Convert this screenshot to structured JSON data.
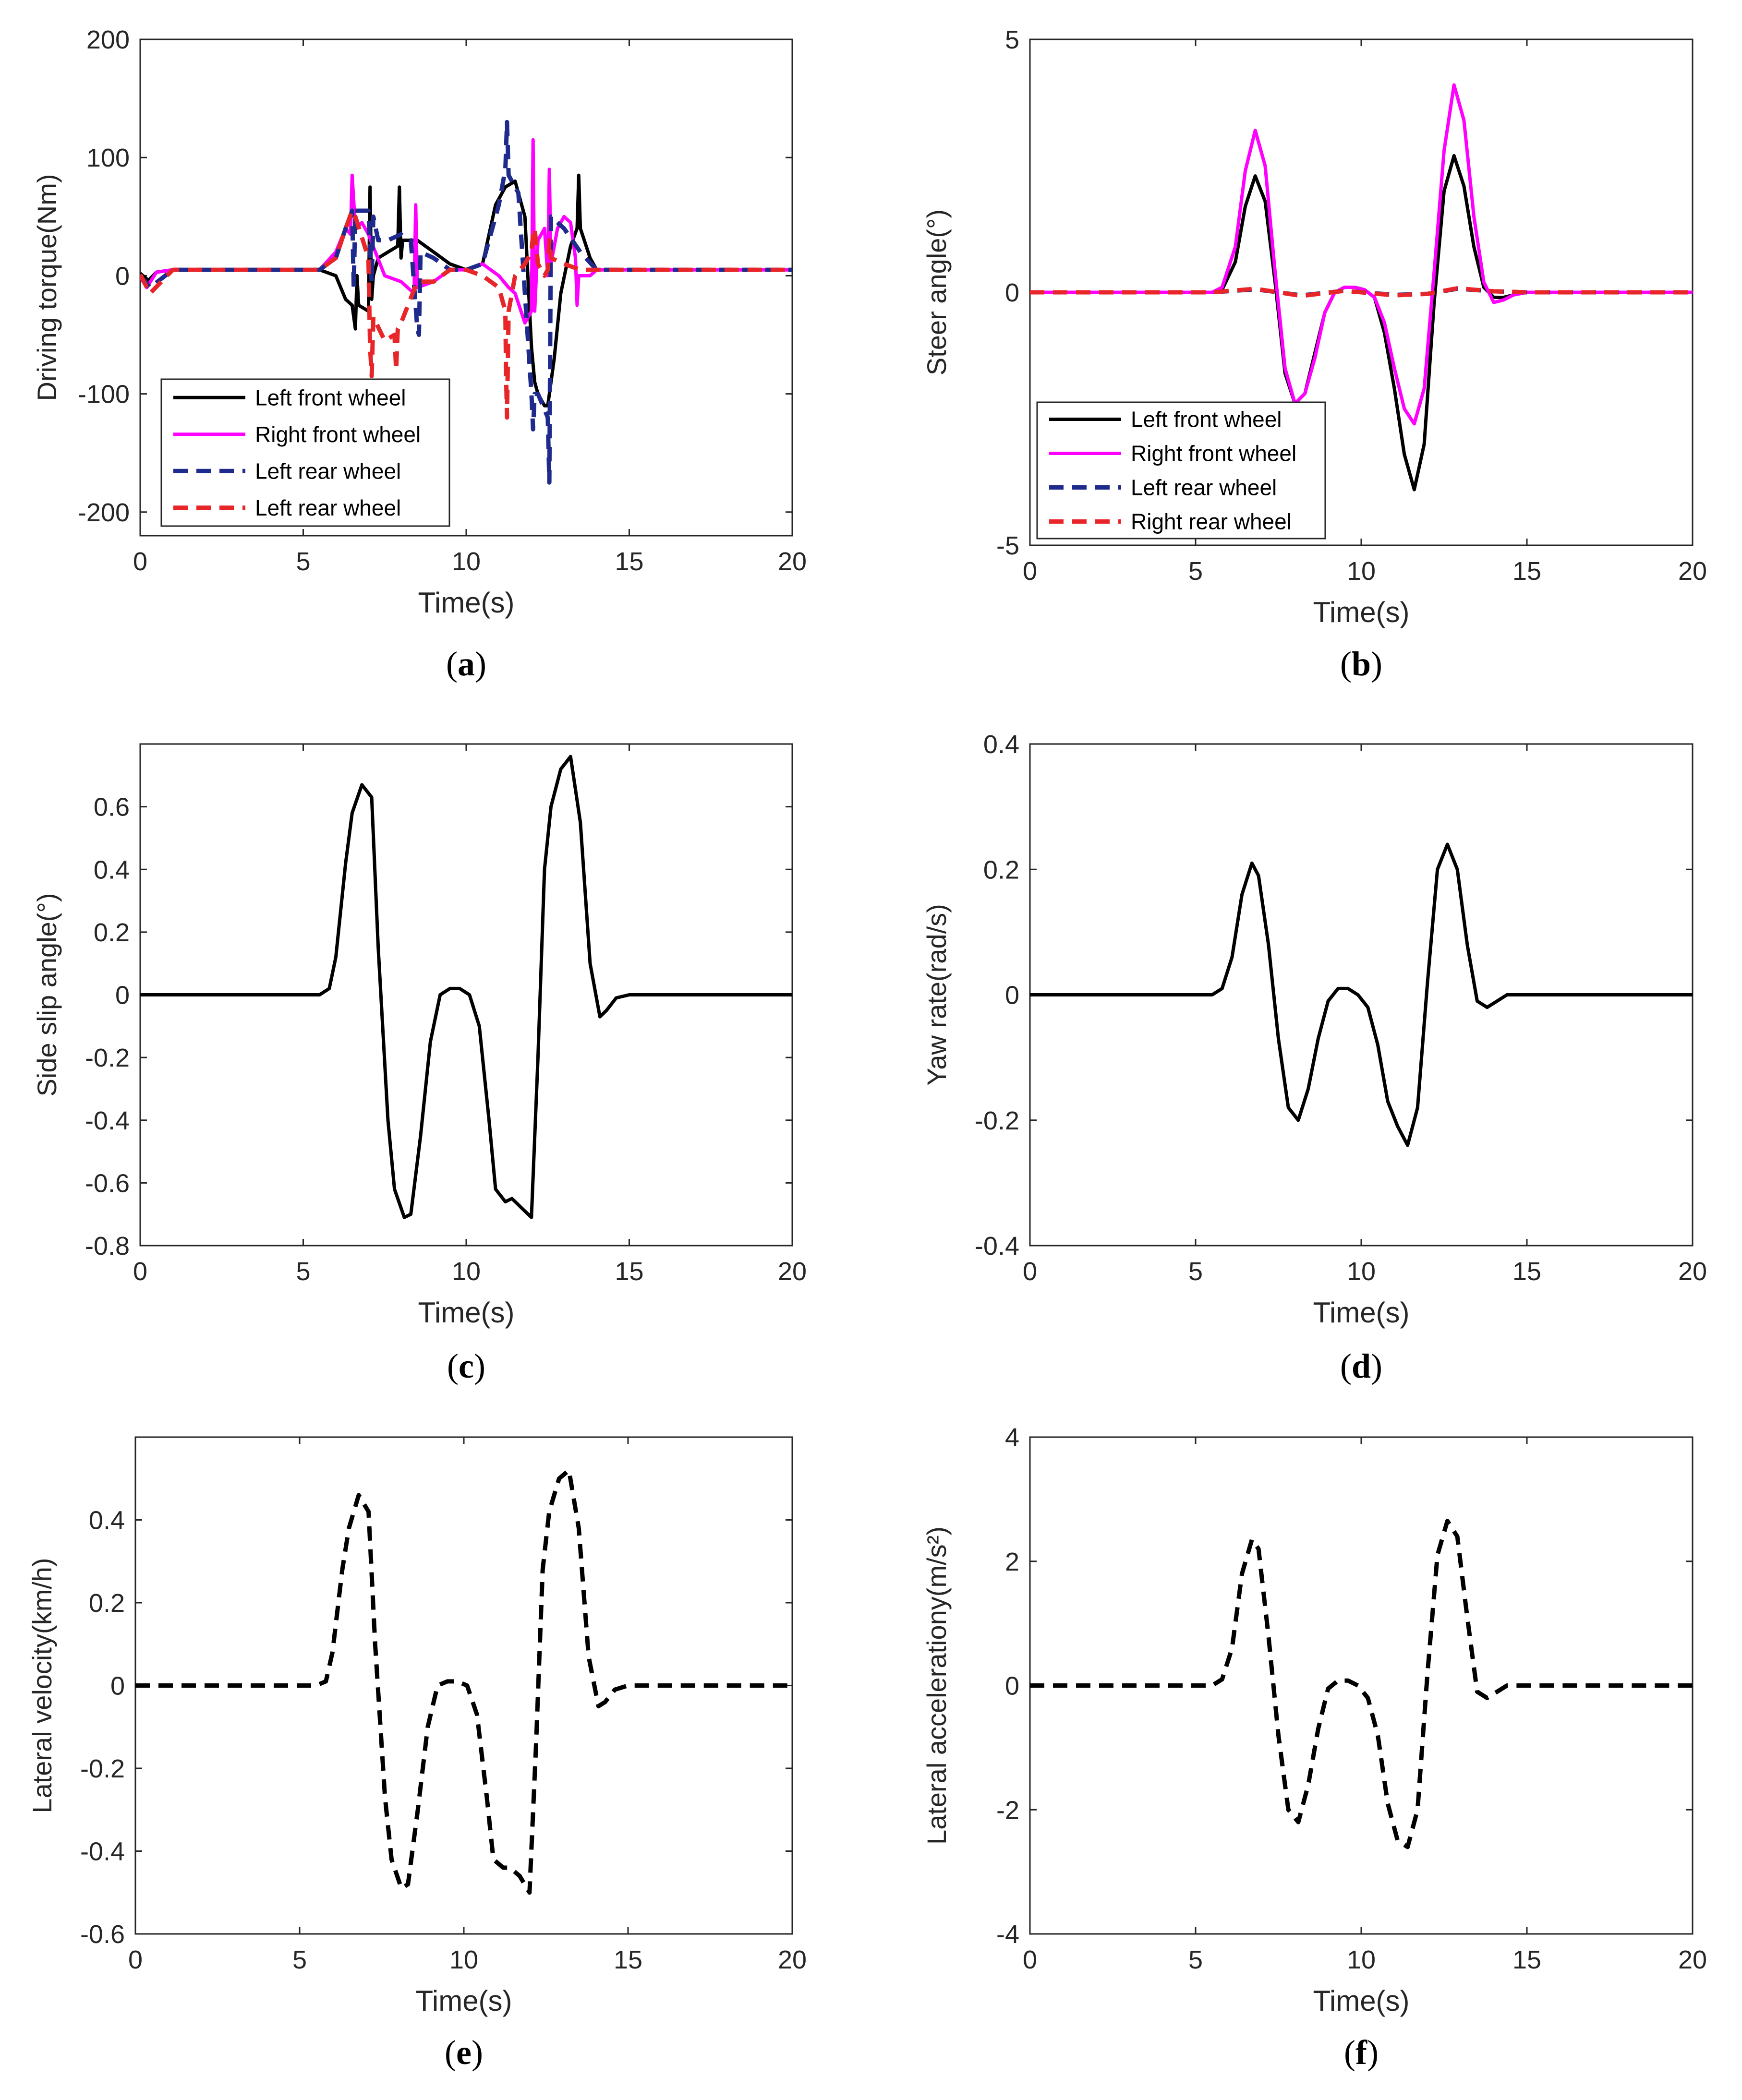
{
  "colors": {
    "black": "#000000",
    "magenta": "#ff00ff",
    "blue": "#1f2b8c",
    "red": "#e8262a",
    "axis": "#262626"
  },
  "chart_data": [
    {
      "id": "a",
      "type": "line",
      "panel_label": "a",
      "xlabel": "Time(s)",
      "ylabel": "Driving torque(Nm)",
      "xlim": [
        0,
        20
      ],
      "ylim": [
        -220,
        200
      ],
      "xticks": [
        0,
        5,
        10,
        15,
        20
      ],
      "yticks": [
        -200,
        -100,
        0,
        100,
        200
      ],
      "legend_position": "bottom-left",
      "series": [
        {
          "name": "Left front wheel",
          "color": "#000000",
          "dash": false,
          "x": [
            0,
            0.25,
            0.5,
            1,
            5.5,
            6,
            6.3,
            6.5,
            6.6,
            6.65,
            6.7,
            7,
            7.05,
            7.1,
            7.15,
            7.3,
            7.6,
            7.9,
            7.95,
            8,
            8.05,
            8.2,
            8.5,
            9,
            9.5,
            10,
            10.5,
            10.9,
            11.2,
            11.5,
            11.8,
            12,
            12.1,
            12.2,
            12.4,
            12.5,
            12.7,
            12.9,
            13.2,
            13.4,
            13.45,
            13.5,
            13.8,
            14,
            14.5,
            15,
            20
          ],
          "y": [
            2,
            -4,
            3,
            5,
            5,
            0,
            -20,
            -25,
            -45,
            0,
            -25,
            -30,
            75,
            -20,
            0,
            15,
            20,
            25,
            75,
            15,
            30,
            30,
            30,
            20,
            10,
            5,
            10,
            60,
            75,
            80,
            50,
            -60,
            -90,
            -100,
            -110,
            -110,
            -70,
            -15,
            25,
            40,
            85,
            40,
            15,
            5,
            5,
            5,
            5
          ]
        },
        {
          "name": "Right front wheel",
          "color": "#ff00ff",
          "dash": false,
          "x": [
            0,
            0.2,
            0.5,
            1,
            5.5,
            6,
            6.3,
            6.45,
            6.5,
            6.6,
            6.8,
            7,
            7.5,
            8,
            8.4,
            8.45,
            8.5,
            9,
            9.5,
            10,
            10.5,
            11,
            11.3,
            11.5,
            11.8,
            12,
            12.05,
            12.1,
            12.2,
            12.4,
            12.5,
            12.55,
            12.6,
            12.8,
            13,
            13.2,
            13.35,
            13.4,
            13.45,
            13.8,
            14,
            14.5,
            15,
            20
          ],
          "y": [
            -1,
            -10,
            3,
            5,
            5,
            20,
            40,
            35,
            85,
            40,
            45,
            35,
            0,
            -5,
            -15,
            60,
            -10,
            -5,
            5,
            5,
            10,
            0,
            -10,
            -15,
            -40,
            -30,
            115,
            -30,
            30,
            40,
            0,
            90,
            10,
            40,
            50,
            45,
            15,
            -25,
            0,
            0,
            5,
            5,
            5,
            5
          ]
        },
        {
          "name": "Left rear wheel",
          "color": "#1f2b8c",
          "dash": true,
          "x": [
            0,
            0.3,
            1,
            5.5,
            6,
            6.3,
            6.5,
            6.55,
            6.6,
            7,
            7.1,
            7.15,
            7.3,
            7.6,
            8,
            8.3,
            8.5,
            8.55,
            8.6,
            9,
            9.5,
            10,
            10.5,
            11,
            11.2,
            11.25,
            11.3,
            11.6,
            12,
            12.05,
            12.1,
            12.2,
            12.5,
            12.55,
            12.6,
            13,
            13.5,
            14,
            15,
            20
          ],
          "y": [
            0,
            -10,
            5,
            5,
            15,
            40,
            55,
            -10,
            55,
            55,
            -5,
            50,
            30,
            30,
            35,
            30,
            -45,
            -50,
            20,
            15,
            5,
            5,
            10,
            60,
            90,
            130,
            85,
            70,
            -100,
            -130,
            -100,
            -100,
            -120,
            -175,
            50,
            40,
            20,
            5,
            5,
            5
          ]
        },
        {
          "name": "Left rear wheel",
          "color": "#e8262a",
          "dash": true,
          "x": [
            0,
            0.3,
            1,
            5.5,
            6,
            6.3,
            6.5,
            6.6,
            7,
            7.05,
            7.1,
            7.15,
            7.5,
            7.8,
            7.85,
            7.9,
            8,
            8.5,
            9,
            9.5,
            10,
            10.5,
            11,
            11.2,
            11.22,
            11.25,
            11.3,
            11.5,
            11.8,
            12,
            12.05,
            12.1,
            12.2,
            12.4,
            12.5,
            12.55,
            12.6,
            13,
            13.5,
            14,
            15,
            20
          ],
          "y": [
            1,
            -15,
            5,
            5,
            15,
            40,
            55,
            50,
            15,
            -60,
            -85,
            -35,
            -55,
            -50,
            -80,
            -45,
            -40,
            -5,
            -5,
            5,
            5,
            0,
            -10,
            -30,
            -80,
            -120,
            -30,
            0,
            10,
            20,
            35,
            40,
            10,
            0,
            5,
            30,
            15,
            10,
            5,
            5,
            5,
            5
          ]
        }
      ]
    },
    {
      "id": "b",
      "type": "line",
      "panel_label": "b",
      "xlabel": "Time(s)",
      "ylabel": "Steer angle(°)",
      "xlim": [
        0,
        20
      ],
      "ylim": [
        -5,
        5
      ],
      "xticks": [
        0,
        5,
        10,
        15,
        20
      ],
      "yticks": [
        -5,
        0,
        5
      ],
      "legend_position": "bottom-left",
      "series": [
        {
          "name": "Left front wheel",
          "color": "#000000",
          "dash": false,
          "x": [
            0,
            5.5,
            5.8,
            6.2,
            6.5,
            6.8,
            7.1,
            7.4,
            7.7,
            8,
            8.3,
            8.6,
            8.9,
            9.2,
            9.5,
            9.8,
            10.1,
            10.4,
            10.7,
            11,
            11.3,
            11.6,
            11.9,
            12.2,
            12.5,
            12.8,
            13.1,
            13.4,
            13.7,
            14,
            14.3,
            14.6,
            15,
            20
          ],
          "x_note": "",
          "y": [
            0,
            0,
            0.05,
            0.6,
            1.7,
            2.3,
            1.8,
            0.2,
            -1.6,
            -2.2,
            -2.0,
            -1.2,
            -0.4,
            0.0,
            0.1,
            0.1,
            0.05,
            -0.1,
            -0.8,
            -1.9,
            -3.2,
            -3.9,
            -3.0,
            -0.2,
            2.0,
            2.7,
            2.1,
            0.9,
            0.1,
            -0.1,
            -0.1,
            -0.05,
            0,
            0
          ]
        },
        {
          "name": "Right front wheel",
          "color": "#ff00ff",
          "dash": false,
          "x": [
            0,
            5.5,
            5.8,
            6.2,
            6.5,
            6.8,
            7.1,
            7.4,
            7.7,
            8,
            8.3,
            8.6,
            8.9,
            9.2,
            9.5,
            9.8,
            10.1,
            10.4,
            10.7,
            11,
            11.3,
            11.6,
            11.9,
            12.2,
            12.5,
            12.8,
            13.1,
            13.4,
            13.7,
            14,
            14.3,
            14.6,
            15,
            20
          ],
          "y": [
            0,
            0,
            0.1,
            0.9,
            2.4,
            3.2,
            2.5,
            0.4,
            -1.5,
            -2.2,
            -2.0,
            -1.3,
            -0.4,
            0.0,
            0.1,
            0.1,
            0.05,
            -0.1,
            -0.6,
            -1.5,
            -2.3,
            -2.6,
            -1.9,
            0.4,
            2.8,
            4.1,
            3.4,
            1.5,
            0.2,
            -0.2,
            -0.15,
            -0.05,
            0,
            0
          ]
        },
        {
          "name": "Left rear wheel",
          "color": "#1f2b8c",
          "dash": true,
          "x": [
            0,
            5.5,
            6.8,
            8.2,
            9.5,
            11,
            12,
            12.9,
            14,
            15,
            20
          ],
          "y": [
            0,
            0,
            0.06,
            -0.06,
            0.03,
            -0.05,
            -0.03,
            0.07,
            0.02,
            0,
            0
          ]
        },
        {
          "name": "Right rear wheel",
          "color": "#e8262a",
          "dash": true,
          "x": [
            0,
            5.5,
            6.8,
            8.2,
            9.5,
            11,
            12,
            12.9,
            14,
            15,
            20
          ],
          "y": [
            0,
            0,
            0.07,
            -0.07,
            0.03,
            -0.06,
            -0.03,
            0.08,
            0.02,
            0,
            0
          ]
        }
      ]
    },
    {
      "id": "c",
      "type": "line",
      "panel_label": "c",
      "xlabel": "Time(s)",
      "ylabel": "Side slip angle(°)",
      "xlim": [
        0,
        20
      ],
      "ylim": [
        -0.8,
        0.8
      ],
      "xticks": [
        0,
        5,
        10,
        15,
        20
      ],
      "yticks": [
        -0.8,
        -0.6,
        -0.4,
        -0.2,
        0,
        0.2,
        0.4,
        0.6
      ],
      "series": [
        {
          "name": "Side slip angle",
          "color": "#000000",
          "dash": false,
          "x": [
            0,
            5.5,
            5.8,
            6,
            6.3,
            6.5,
            6.8,
            7.1,
            7.3,
            7.6,
            7.8,
            8.1,
            8.3,
            8.6,
            8.9,
            9.2,
            9.5,
            9.8,
            10.1,
            10.4,
            10.7,
            10.9,
            11.2,
            11.4,
            11.7,
            12,
            12.2,
            12.4,
            12.6,
            12.9,
            13.2,
            13.5,
            13.8,
            14.1,
            14.3,
            14.6,
            15,
            20
          ],
          "y": [
            0,
            0,
            0.02,
            0.12,
            0.42,
            0.58,
            0.67,
            0.63,
            0.15,
            -0.4,
            -0.62,
            -0.71,
            -0.7,
            -0.45,
            -0.15,
            0.0,
            0.02,
            0.02,
            0.0,
            -0.1,
            -0.4,
            -0.62,
            -0.66,
            -0.65,
            -0.68,
            -0.71,
            -0.2,
            0.4,
            0.6,
            0.72,
            0.76,
            0.55,
            0.1,
            -0.07,
            -0.05,
            -0.01,
            0,
            0
          ]
        }
      ]
    },
    {
      "id": "d",
      "type": "line",
      "panel_label": "d",
      "xlabel": "Time(s)",
      "ylabel": "Yaw rate(rad/s)",
      "xlim": [
        0,
        20
      ],
      "ylim": [
        -0.4,
        0.4
      ],
      "xticks": [
        0,
        5,
        10,
        15,
        20
      ],
      "yticks": [
        -0.4,
        -0.2,
        0,
        0.2,
        0.4
      ],
      "series": [
        {
          "name": "Yaw rate",
          "color": "#000000",
          "dash": false,
          "x": [
            0,
            5.5,
            5.8,
            6.1,
            6.4,
            6.7,
            6.9,
            7.2,
            7.5,
            7.8,
            8.1,
            8.4,
            8.7,
            9,
            9.3,
            9.6,
            9.9,
            10.2,
            10.5,
            10.8,
            11.1,
            11.4,
            11.7,
            12,
            12.3,
            12.6,
            12.9,
            13.2,
            13.5,
            13.8,
            14.1,
            14.4,
            14.7,
            15,
            20
          ],
          "y": [
            0,
            0,
            0.01,
            0.06,
            0.16,
            0.21,
            0.19,
            0.08,
            -0.07,
            -0.18,
            -0.2,
            -0.15,
            -0.07,
            -0.01,
            0.01,
            0.01,
            0.0,
            -0.02,
            -0.08,
            -0.17,
            -0.21,
            -0.24,
            -0.18,
            0.02,
            0.2,
            0.24,
            0.2,
            0.08,
            -0.01,
            -0.02,
            -0.01,
            0,
            0,
            0,
            0
          ]
        }
      ]
    },
    {
      "id": "e",
      "type": "line",
      "panel_label": "e",
      "xlabel": "Time(s)",
      "ylabel": "Lateral velocity(km/h)",
      "xlim": [
        0,
        20
      ],
      "ylim": [
        -0.6,
        0.6
      ],
      "xticks": [
        0,
        5,
        10,
        15,
        20
      ],
      "yticks": [
        -0.6,
        -0.4,
        -0.2,
        0,
        0.2,
        0.4
      ],
      "series": [
        {
          "name": "Lateral velocity",
          "color": "#000000",
          "dash": true,
          "x": [
            0,
            5.5,
            5.8,
            6,
            6.3,
            6.5,
            6.8,
            7.1,
            7.3,
            7.6,
            7.8,
            8.1,
            8.3,
            8.6,
            8.9,
            9.2,
            9.5,
            9.8,
            10.1,
            10.4,
            10.7,
            10.9,
            11.2,
            11.4,
            11.7,
            12,
            12.2,
            12.4,
            12.6,
            12.9,
            13.2,
            13.5,
            13.8,
            14.1,
            14.3,
            14.6,
            15,
            20
          ],
          "y": [
            0,
            0,
            0.01,
            0.08,
            0.28,
            0.38,
            0.46,
            0.42,
            0.1,
            -0.27,
            -0.42,
            -0.49,
            -0.48,
            -0.3,
            -0.1,
            0.0,
            0.01,
            0.01,
            0.0,
            -0.07,
            -0.27,
            -0.42,
            -0.44,
            -0.44,
            -0.46,
            -0.5,
            -0.14,
            0.28,
            0.42,
            0.5,
            0.52,
            0.38,
            0.07,
            -0.05,
            -0.04,
            -0.01,
            0,
            0
          ]
        }
      ]
    },
    {
      "id": "f",
      "type": "line",
      "panel_label": "f",
      "xlabel": "Time(s)",
      "ylabel": "Lateral accelerationy(m/s²)",
      "xlim": [
        0,
        20
      ],
      "ylim": [
        -4,
        4
      ],
      "xticks": [
        0,
        5,
        10,
        15,
        20
      ],
      "yticks": [
        -4,
        -2,
        0,
        2,
        4
      ],
      "series": [
        {
          "name": "Lateral acceleration",
          "color": "#000000",
          "dash": true,
          "x": [
            0,
            5.5,
            5.8,
            6.1,
            6.4,
            6.7,
            6.9,
            7.2,
            7.5,
            7.8,
            8.1,
            8.4,
            8.7,
            9,
            9.3,
            9.6,
            9.9,
            10.2,
            10.5,
            10.8,
            11.1,
            11.4,
            11.7,
            12,
            12.3,
            12.6,
            12.9,
            13.2,
            13.5,
            13.8,
            14.1,
            14.4,
            14.7,
            15,
            20
          ],
          "y": [
            0,
            0,
            0.1,
            0.6,
            1.8,
            2.35,
            2.2,
            0.8,
            -0.8,
            -2.0,
            -2.2,
            -1.6,
            -0.7,
            -0.05,
            0.08,
            0.08,
            0.0,
            -0.2,
            -0.8,
            -1.9,
            -2.5,
            -2.6,
            -2.0,
            0.2,
            2.1,
            2.65,
            2.4,
            1.1,
            -0.1,
            -0.2,
            -0.1,
            0,
            0,
            0,
            0
          ]
        }
      ]
    }
  ]
}
